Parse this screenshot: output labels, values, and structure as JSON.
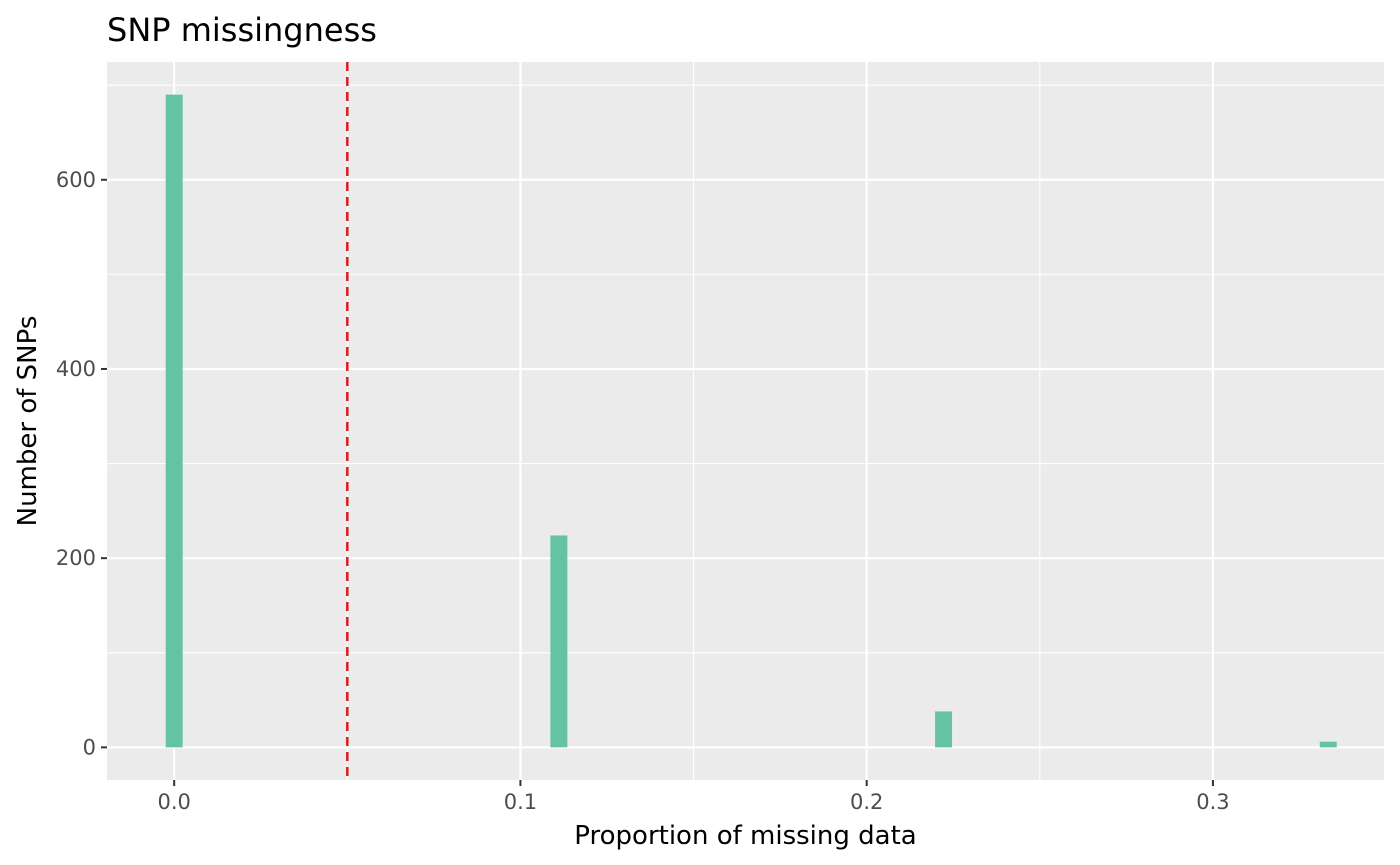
{
  "chart_data": {
    "type": "bar",
    "title": "SNP missingness",
    "xlabel": "Proportion of missing data",
    "ylabel": "Number of SNPs",
    "xlim": [
      -0.0194,
      0.3494
    ],
    "ylim": [
      -34.5,
      724.5
    ],
    "x_ticks": [
      0.0,
      0.1,
      0.2,
      0.3
    ],
    "x_tick_labels": [
      "0.0",
      "0.1",
      "0.2",
      "0.3"
    ],
    "y_ticks": [
      0,
      200,
      400,
      600
    ],
    "y_tick_labels": [
      "0",
      "200",
      "400",
      "600"
    ],
    "x": [
      0.0,
      0.1111,
      0.2222,
      0.3333
    ],
    "values": [
      690,
      224,
      38,
      6
    ],
    "bar_width": 0.0049,
    "bar_color": "#66C2A5",
    "threshold": {
      "x": 0.05,
      "color": "#E31A1C",
      "style": "dashed"
    },
    "panel_background": "#EBEBEB",
    "grid": true,
    "legend": "none"
  }
}
